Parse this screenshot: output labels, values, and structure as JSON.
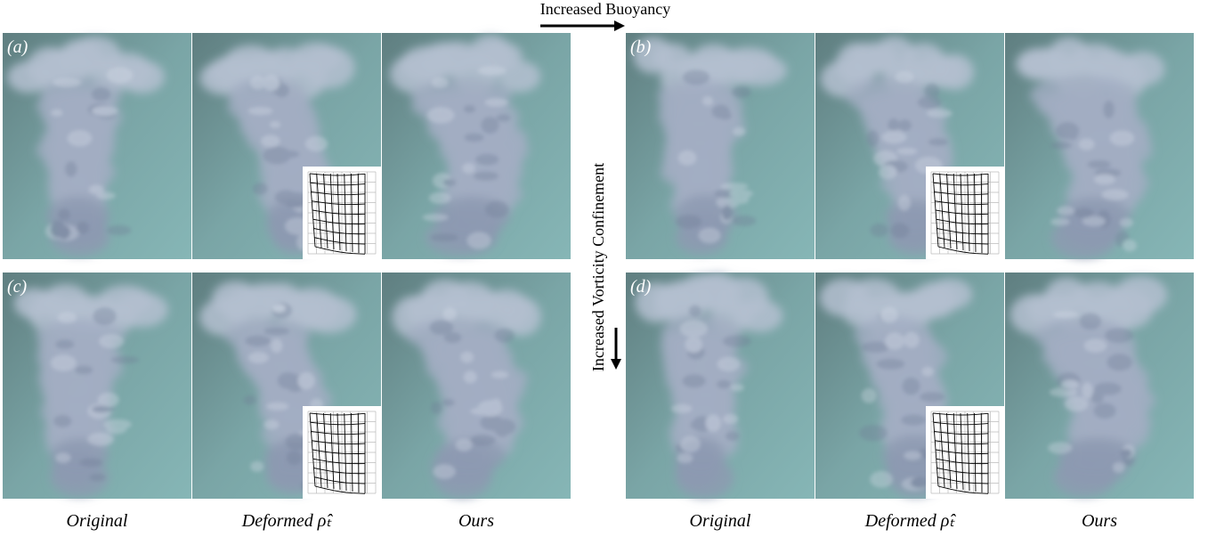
{
  "top_label": "Increased Buoyancy",
  "side_label": "Increased Vorticity Confinement",
  "groups": [
    {
      "rows": [
        "(a)",
        "(c)"
      ],
      "captions": [
        "Original",
        "Deformed ρ̂ₜ",
        "Ours"
      ]
    },
    {
      "rows": [
        "(b)",
        "(d)"
      ],
      "captions": [
        "Original",
        "Deformed ρ̂ₜ",
        "Ours"
      ]
    }
  ]
}
